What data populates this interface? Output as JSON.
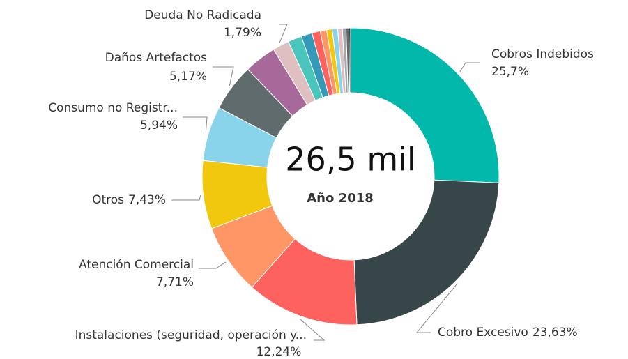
{
  "chart_data": {
    "type": "donut",
    "center_text": "26,5 mil",
    "subtitle": "Año 2018",
    "categories": [
      "Cobros Indebidos",
      "Cobro Excesivo",
      "Instalaciones (seguridad, operación y...",
      "Atención Comercial",
      "Otros",
      "Consumo no Registr...",
      "Daños Artefactos",
      null,
      "Deuda No Radicada",
      null,
      null,
      null,
      null,
      null,
      null,
      null,
      null,
      null,
      null
    ],
    "values": [
      25.7,
      23.63,
      12.24,
      7.71,
      7.43,
      5.94,
      5.17,
      3.5,
      1.79,
      1.5,
      1.2,
      0.9,
      0.7,
      0.6,
      0.6,
      0.5,
      0.4,
      0.3,
      0.19
    ],
    "value_labels": [
      "25,7%",
      "23,63%",
      "12,24%",
      "7,71%",
      "7,43%",
      "5,94%",
      "5,17%",
      null,
      "1,79%",
      null,
      null,
      null,
      null,
      null,
      null,
      null,
      null,
      null,
      null
    ],
    "colors": [
      "#01b8aa",
      "#374649",
      "#fd625e",
      "#fe9666",
      "#f2c80f",
      "#8ad4eb",
      "#5f6b6d",
      "#a66999",
      "#dfbfbf",
      "#4ac5bb",
      "#3599b8",
      "#fd625e",
      "#fe9666",
      "#f2c80f",
      "#8ad4eb",
      "#dfbfbf",
      "#a0a8aa",
      "#5f6b6d",
      "#374649"
    ]
  }
}
